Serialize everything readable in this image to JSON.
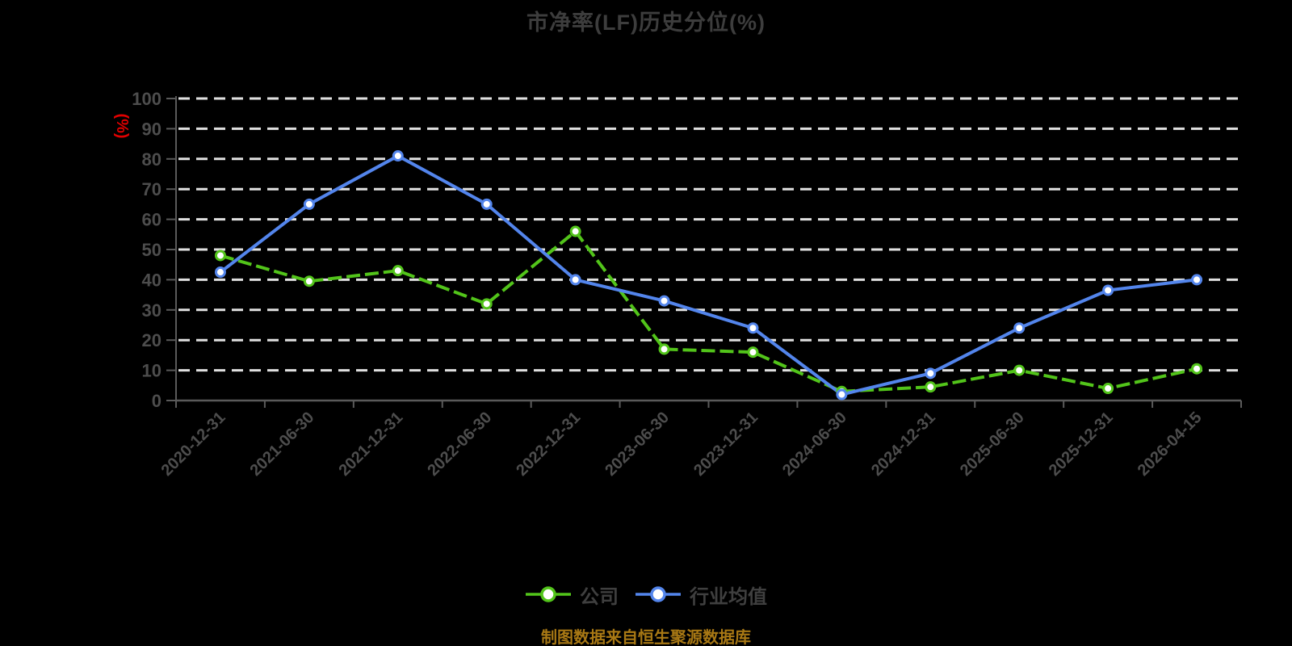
{
  "page": {
    "background": "#000000"
  },
  "chart_data": {
    "type": "line",
    "title": "市净率(LF)历史分位(%)",
    "ylabel": "(%)",
    "xlabel": "",
    "ylim": [
      0,
      100
    ],
    "y_tick_step": 10,
    "y_ticks": [
      0,
      10,
      20,
      30,
      40,
      50,
      60,
      70,
      80,
      90,
      100
    ],
    "grid": "horizontal-dashed",
    "legend_position": "bottom-center",
    "categories": [
      "2020-12-31",
      "2021-06-30",
      "2021-12-31",
      "2022-06-30",
      "2022-12-31",
      "2023-06-30",
      "2023-12-31",
      "2024-06-30",
      "2024-12-31",
      "2025-06-30",
      "2025-12-31",
      "2026-04-15"
    ],
    "series": [
      {
        "name": "公司",
        "color": "#52c41a",
        "line_style": "long-dash",
        "marker": "circle-white-fill",
        "values": [
          48,
          39.5,
          43,
          32,
          56,
          17,
          16,
          3,
          4.5,
          10,
          4,
          10.5
        ]
      },
      {
        "name": "行业均值",
        "color": "#5385ec",
        "line_style": "solid",
        "marker": "circle-white-fill",
        "values": [
          42.5,
          65,
          81,
          65,
          40,
          33,
          24,
          2,
          9,
          24,
          36.5,
          40
        ]
      }
    ],
    "style": {
      "title_color": "#3d3d3d",
      "axis_label_color": "#4d4d4d",
      "axis_line_color": "#5a5a5a",
      "gridline_color": "#e0e0e0",
      "unit_label_color": "#e00000",
      "background": "#000000"
    }
  },
  "footer": {
    "note": "制图数据来自恒生聚源数据库",
    "color": "#a87814"
  }
}
